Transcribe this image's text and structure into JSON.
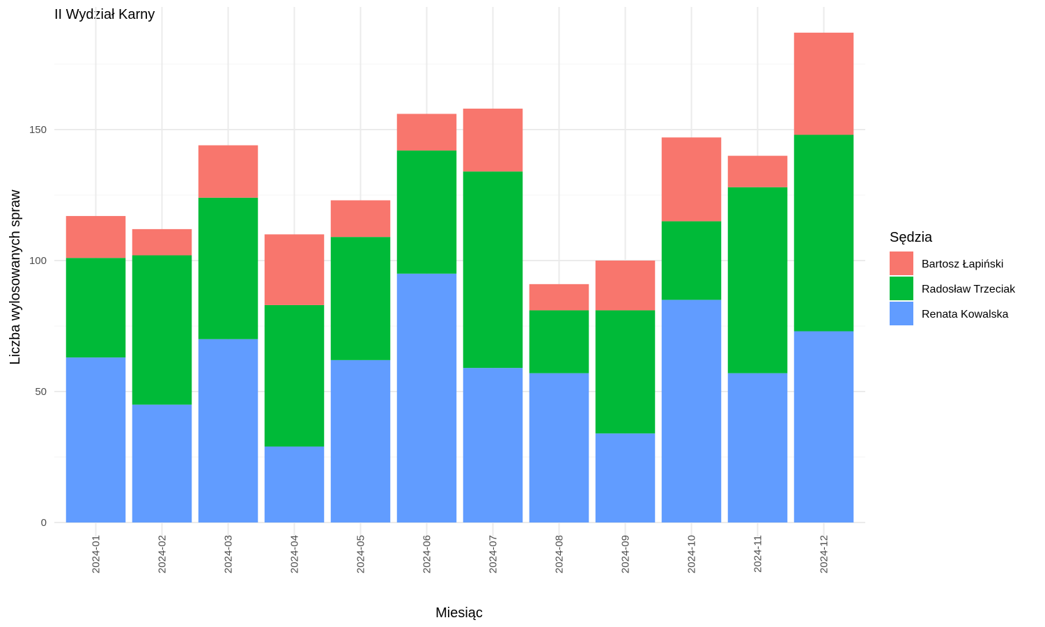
{
  "chart_data": {
    "type": "bar",
    "stacked": true,
    "title": "II Wydział Karny",
    "xlabel": "Miesiąc",
    "ylabel": "Liczba wylosowanych spraw",
    "categories": [
      "2024-01",
      "2024-02",
      "2024-03",
      "2024-04",
      "2024-05",
      "2024-06",
      "2024-07",
      "2024-08",
      "2024-09",
      "2024-10",
      "2024-11",
      "2024-12"
    ],
    "series": [
      {
        "name": "Renata Kowalska",
        "color": "#619CFF",
        "values": [
          63,
          45,
          70,
          29,
          62,
          95,
          59,
          57,
          34,
          85,
          57,
          73
        ]
      },
      {
        "name": "Radosław Trzeciak",
        "color": "#00BA38",
        "values": [
          38,
          57,
          54,
          54,
          47,
          47,
          75,
          24,
          47,
          30,
          71,
          75
        ]
      },
      {
        "name": "Bartosz Łapiński",
        "color": "#F8766D",
        "values": [
          16,
          10,
          20,
          27,
          14,
          14,
          24,
          10,
          19,
          32,
          12,
          39
        ]
      }
    ],
    "ylim": [
      0,
      190
    ],
    "yticks": [
      0,
      50,
      100,
      150
    ],
    "grid": true,
    "legend": {
      "title": "Sędzia",
      "placement": "right",
      "entries": [
        "Bartosz Łapiński",
        "Radosław Trzeciak",
        "Renata Kowalska"
      ]
    }
  }
}
